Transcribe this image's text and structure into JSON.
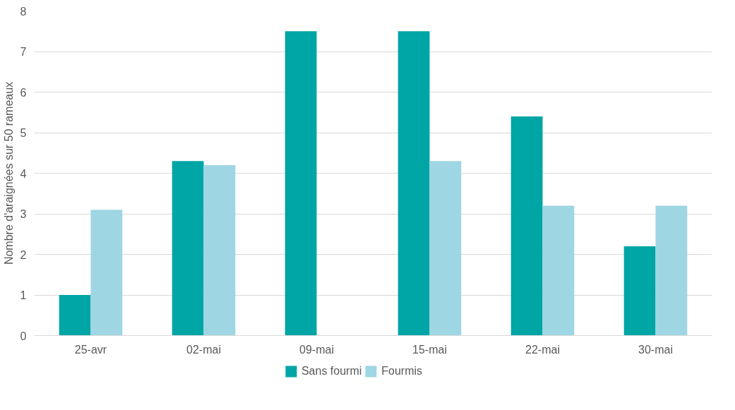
{
  "chart_data": {
    "type": "bar",
    "ylabel": "Nombre d'araignées sur 50 rameaux",
    "categories": [
      "25-avr",
      "02-mai",
      "09-mai",
      "15-mai",
      "22-mai",
      "30-mai"
    ],
    "series": [
      {
        "name": "Sans fourmi",
        "color": "#00a5a5",
        "values": [
          1.0,
          4.3,
          7.5,
          7.5,
          5.4,
          2.2
        ]
      },
      {
        "name": "Fourmis",
        "color": "#9fd6e3",
        "values": [
          3.1,
          4.2,
          0,
          4.3,
          3.2,
          3.2
        ]
      }
    ],
    "ylim": [
      0,
      8
    ],
    "yticks": [
      0,
      1,
      2,
      3,
      4,
      5,
      6,
      7,
      8
    ],
    "grid": "y",
    "legend": "bottom"
  }
}
